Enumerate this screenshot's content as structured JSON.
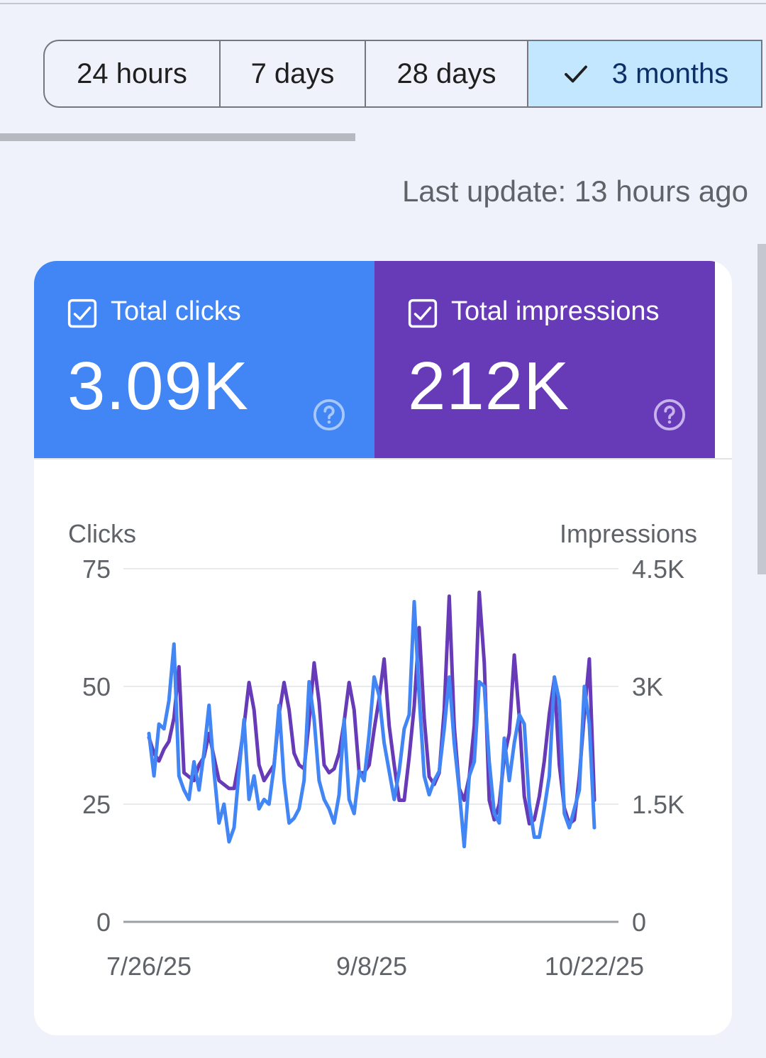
{
  "range_selector": {
    "options": [
      "24 hours",
      "7 days",
      "28 days",
      "3 months"
    ],
    "selected": "3 months"
  },
  "last_update": "Last update: 13 hours ago",
  "metrics": {
    "clicks": {
      "label": "Total clicks",
      "value": "3.09K",
      "color": "#4285f4",
      "checked": true
    },
    "impressions": {
      "label": "Total impressions",
      "value": "212K",
      "color": "#673ab7",
      "checked": true
    }
  },
  "icons": {
    "check": "check-icon",
    "checkbox": "checkbox-checked-icon",
    "help": "help-circle-icon"
  },
  "chart_data": {
    "type": "line",
    "left_axis_label": "Clicks",
    "right_axis_label": "Impressions",
    "left_ticks": [
      "75",
      "50",
      "25",
      "0"
    ],
    "right_ticks": [
      "4.5K",
      "3K",
      "1.5K",
      "0"
    ],
    "left_ylim": [
      0,
      75
    ],
    "right_ylim": [
      0,
      4500
    ],
    "x_tick_labels": [
      "7/26/25",
      "9/8/25",
      "10/22/25"
    ],
    "x_range": [
      "7/26/25",
      "10/22/25"
    ],
    "grid": true,
    "series": [
      {
        "axis": "left",
        "color": "#4285f4",
        "values": [
          40,
          31,
          42,
          41,
          47,
          59,
          31,
          28,
          26,
          34,
          28,
          36,
          46,
          32,
          21,
          25,
          17,
          20,
          32,
          43,
          26,
          31,
          24,
          26,
          25,
          33,
          46,
          30,
          21,
          22,
          24,
          30,
          51,
          43,
          30,
          26,
          24,
          21,
          27,
          43,
          26,
          23,
          32,
          30,
          40,
          52,
          48,
          38,
          32,
          26,
          32,
          41,
          44,
          68,
          48,
          31,
          27,
          30,
          32,
          41,
          52,
          38,
          28,
          16,
          31,
          34,
          51,
          50,
          34,
          23,
          21,
          39,
          30,
          38,
          44,
          42,
          25,
          18,
          18,
          24,
          31,
          52,
          47,
          23,
          20,
          24,
          28,
          50,
          42,
          20
        ]
      },
      {
        "axis": "right",
        "color": "#673ab7",
        "values": [
          2350,
          2150,
          2050,
          2200,
          2300,
          2600,
          3250,
          1900,
          1850,
          1800,
          2000,
          2100,
          2400,
          2100,
          1800,
          1750,
          1700,
          1700,
          2050,
          2500,
          3050,
          2700,
          2000,
          1800,
          1900,
          2000,
          2650,
          3050,
          2700,
          2150,
          2000,
          1950,
          2550,
          3300,
          2800,
          2000,
          1900,
          1950,
          2150,
          2550,
          3050,
          2700,
          1900,
          1900,
          2000,
          2450,
          2850,
          3350,
          2500,
          2000,
          1550,
          1550,
          2100,
          2750,
          3750,
          2600,
          1850,
          1750,
          1900,
          2700,
          4150,
          2500,
          1700,
          1550,
          1850,
          2500,
          4200,
          3300,
          1550,
          1300,
          1500,
          2100,
          2400,
          3400,
          2600,
          1600,
          1250,
          1300,
          1600,
          2050,
          2650,
          3100,
          2000,
          1450,
          1250,
          1300,
          1850,
          2650,
          3350,
          1550
        ]
      }
    ]
  }
}
